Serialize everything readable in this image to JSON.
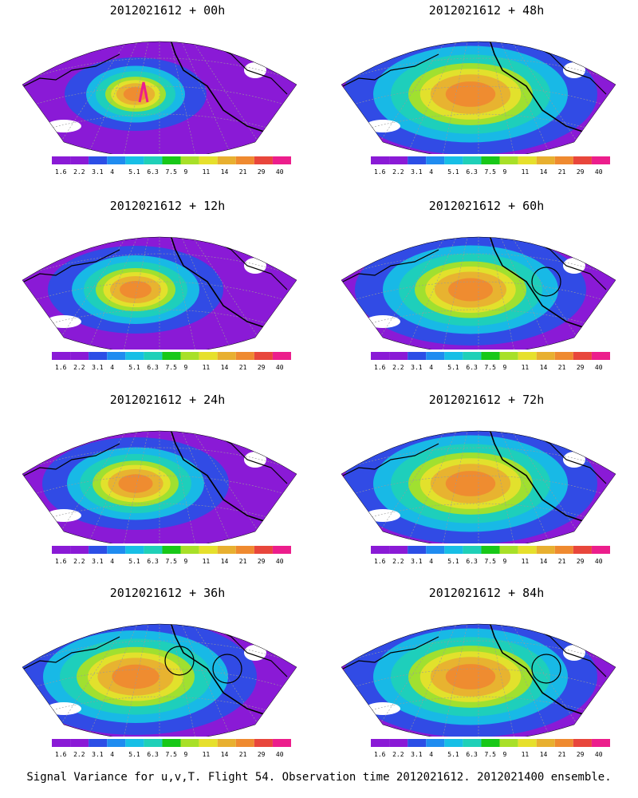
{
  "panels": [
    {
      "title": "2012021612 + 00h"
    },
    {
      "title": "2012021612 + 48h"
    },
    {
      "title": "2012021612 + 12h"
    },
    {
      "title": "2012021612 + 60h"
    },
    {
      "title": "2012021612 + 24h"
    },
    {
      "title": "2012021612 + 72h"
    },
    {
      "title": "2012021612 + 36h"
    },
    {
      "title": "2012021612 + 84h"
    }
  ],
  "colorbar": {
    "labels": [
      "1.6",
      "2.2",
      "3.1",
      "4",
      "5.1",
      "6.3",
      "7.5",
      "9",
      "11",
      "14",
      "21",
      "29",
      "40"
    ],
    "colors": [
      "#8a1ad6",
      "#8a1ad6",
      "#2c4ee6",
      "#1f8cf0",
      "#17bfe6",
      "#1fd0b8",
      "#18c818",
      "#a8e028",
      "#e6e02c",
      "#e8b030",
      "#ef8a30",
      "#e8463c",
      "#ec1e8c"
    ]
  },
  "footer": "Signal Variance for u,v,T. Flight 54. Observation time 2012021612. 2012021400 ensemble."
}
